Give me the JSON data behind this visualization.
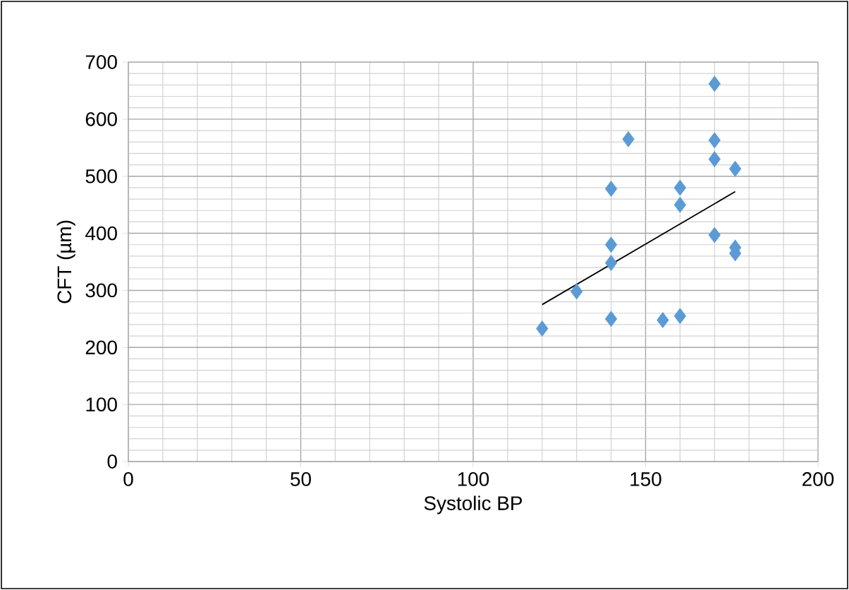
{
  "chart_data": {
    "type": "scatter",
    "xlabel": "Systolic BP",
    "ylabel": "CFT (µm)",
    "xlim": [
      0,
      200
    ],
    "xticks": [
      0,
      50,
      100,
      150,
      200
    ],
    "ylim": [
      0,
      700
    ],
    "yticks": [
      0,
      100,
      200,
      300,
      400,
      500,
      600,
      700
    ],
    "grid": true,
    "marker": "diamond",
    "series": [
      {
        "color": "#5b9bd5",
        "x": [
          120,
          130,
          140,
          140,
          140,
          140,
          145,
          155,
          160,
          160,
          160,
          170,
          170,
          170,
          170,
          176,
          176,
          176
        ],
        "values": [
          233,
          298,
          250,
          348,
          380,
          478,
          565,
          248,
          255,
          450,
          480,
          397,
          530,
          563,
          662,
          513,
          375,
          365
        ]
      },
      {
        "type": "line",
        "color": "#000000",
        "marker": "none",
        "line_style": "solid",
        "x": [
          120,
          176
        ],
        "values": [
          275,
          473
        ]
      }
    ]
  }
}
